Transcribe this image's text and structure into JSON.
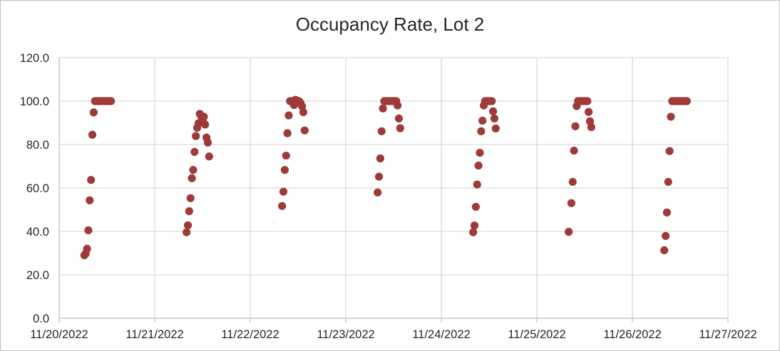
{
  "chart_data": {
    "type": "scatter",
    "title": "Occupancy Rate, Lot 2",
    "xlabel": "",
    "ylabel": "",
    "x_type": "date",
    "xlim": [
      "2022-11-20",
      "2022-11-27"
    ],
    "ylim": [
      0,
      120
    ],
    "y_ticks": [
      0,
      20,
      40,
      60,
      80,
      100,
      120
    ],
    "y_tick_labels": [
      "0.0",
      "20.0",
      "40.0",
      "60.0",
      "80.0",
      "100.0",
      "120.0"
    ],
    "x_tick_labels": [
      "11/20/2022",
      "11/21/2022",
      "11/22/2022",
      "11/23/2022",
      "11/24/2022",
      "11/25/2022",
      "11/26/2022",
      "11/27/2022"
    ],
    "grid": true,
    "marker_color": "#9E3B39",
    "series": [
      {
        "points": [
          [
            "2022-11-20 06:20",
            29.0
          ],
          [
            "2022-11-20 06:40",
            29.8
          ],
          [
            "2022-11-20 07:00",
            32.0
          ],
          [
            "2022-11-20 07:20",
            40.5
          ],
          [
            "2022-11-20 07:40",
            54.3
          ],
          [
            "2022-11-20 08:00",
            63.7
          ],
          [
            "2022-11-20 08:20",
            84.5
          ],
          [
            "2022-11-20 08:40",
            94.8
          ],
          [
            "2022-11-20 09:00",
            100.0
          ],
          [
            "2022-11-20 09:20",
            100.0
          ],
          [
            "2022-11-20 09:40",
            100.0
          ],
          [
            "2022-11-20 10:00",
            100.0
          ],
          [
            "2022-11-20 10:20",
            100.0
          ],
          [
            "2022-11-20 10:40",
            100.0
          ],
          [
            "2022-11-20 11:00",
            100.0
          ],
          [
            "2022-11-20 11:20",
            100.0
          ],
          [
            "2022-11-20 11:40",
            100.0
          ],
          [
            "2022-11-20 12:00",
            100.0
          ],
          [
            "2022-11-20 12:20",
            100.0
          ],
          [
            "2022-11-20 12:40",
            100.0
          ],
          [
            "2022-11-20 13:00",
            100.0
          ],
          [
            "2022-11-21 08:00",
            39.6
          ],
          [
            "2022-11-21 08:20",
            42.8
          ],
          [
            "2022-11-21 08:40",
            49.3
          ],
          [
            "2022-11-21 09:00",
            55.3
          ],
          [
            "2022-11-21 09:20",
            64.5
          ],
          [
            "2022-11-21 09:40",
            68.3
          ],
          [
            "2022-11-21 10:00",
            76.6
          ],
          [
            "2022-11-21 10:20",
            83.9
          ],
          [
            "2022-11-21 10:40",
            87.7
          ],
          [
            "2022-11-21 11:00",
            89.8
          ],
          [
            "2022-11-21 11:20",
            94.1
          ],
          [
            "2022-11-21 11:40",
            93.0
          ],
          [
            "2022-11-21 12:00",
            91.0
          ],
          [
            "2022-11-21 12:20",
            92.8
          ],
          [
            "2022-11-21 12:40",
            89.2
          ],
          [
            "2022-11-21 13:00",
            83.2
          ],
          [
            "2022-11-21 13:20",
            80.9
          ],
          [
            "2022-11-21 13:40",
            74.5
          ],
          [
            "2022-11-22 08:00",
            51.7
          ],
          [
            "2022-11-22 08:20",
            58.3
          ],
          [
            "2022-11-22 08:40",
            68.3
          ],
          [
            "2022-11-22 09:00",
            74.9
          ],
          [
            "2022-11-22 09:20",
            85.2
          ],
          [
            "2022-11-22 09:40",
            93.4
          ],
          [
            "2022-11-22 10:00",
            100.0
          ],
          [
            "2022-11-22 10:20",
            100.0
          ],
          [
            "2022-11-22 10:40",
            100.0
          ],
          [
            "2022-11-22 11:00",
            98.2
          ],
          [
            "2022-11-22 11:20",
            100.6
          ],
          [
            "2022-11-22 11:40",
            99.3
          ],
          [
            "2022-11-22 12:00",
            100.1
          ],
          [
            "2022-11-22 12:20",
            99.8
          ],
          [
            "2022-11-22 12:40",
            99.0
          ],
          [
            "2022-11-22 13:00",
            97.6
          ],
          [
            "2022-11-22 13:20",
            94.9
          ],
          [
            "2022-11-22 13:40",
            86.5
          ],
          [
            "2022-11-23 08:00",
            57.9
          ],
          [
            "2022-11-23 08:20",
            65.2
          ],
          [
            "2022-11-23 08:40",
            73.6
          ],
          [
            "2022-11-23 09:00",
            86.1
          ],
          [
            "2022-11-23 09:20",
            96.6
          ],
          [
            "2022-11-23 09:40",
            100.0
          ],
          [
            "2022-11-23 10:00",
            100.0
          ],
          [
            "2022-11-23 10:20",
            100.0
          ],
          [
            "2022-11-23 10:40",
            100.0
          ],
          [
            "2022-11-23 11:00",
            100.0
          ],
          [
            "2022-11-23 11:20",
            100.0
          ],
          [
            "2022-11-23 11:40",
            100.0
          ],
          [
            "2022-11-23 12:00",
            100.0
          ],
          [
            "2022-11-23 12:20",
            100.0
          ],
          [
            "2022-11-23 12:40",
            100.0
          ],
          [
            "2022-11-23 13:00",
            98.0
          ],
          [
            "2022-11-23 13:20",
            92.0
          ],
          [
            "2022-11-23 13:40",
            87.5
          ],
          [
            "2022-11-24 08:00",
            39.6
          ],
          [
            "2022-11-24 08:20",
            42.7
          ],
          [
            "2022-11-24 08:40",
            51.3
          ],
          [
            "2022-11-24 09:00",
            61.6
          ],
          [
            "2022-11-24 09:20",
            70.3
          ],
          [
            "2022-11-24 09:40",
            76.2
          ],
          [
            "2022-11-24 10:00",
            86.1
          ],
          [
            "2022-11-24 10:20",
            91.0
          ],
          [
            "2022-11-24 10:40",
            98.0
          ],
          [
            "2022-11-24 11:00",
            100.0
          ],
          [
            "2022-11-24 11:20",
            100.0
          ],
          [
            "2022-11-24 11:40",
            100.0
          ],
          [
            "2022-11-24 12:00",
            100.0
          ],
          [
            "2022-11-24 12:20",
            100.0
          ],
          [
            "2022-11-24 12:40",
            100.0
          ],
          [
            "2022-11-24 13:00",
            95.3
          ],
          [
            "2022-11-24 13:20",
            92.0
          ],
          [
            "2022-11-24 13:40",
            87.4
          ],
          [
            "2022-11-25 08:00",
            39.8
          ],
          [
            "2022-11-25 08:40",
            53.0
          ],
          [
            "2022-11-25 09:00",
            62.8
          ],
          [
            "2022-11-25 09:20",
            77.2
          ],
          [
            "2022-11-25 09:40",
            88.4
          ],
          [
            "2022-11-25 10:00",
            97.7
          ],
          [
            "2022-11-25 10:20",
            100.0
          ],
          [
            "2022-11-25 10:40",
            100.0
          ],
          [
            "2022-11-25 11:00",
            100.0
          ],
          [
            "2022-11-25 11:20",
            100.0
          ],
          [
            "2022-11-25 11:40",
            100.0
          ],
          [
            "2022-11-25 12:00",
            100.0
          ],
          [
            "2022-11-25 12:20",
            100.0
          ],
          [
            "2022-11-25 12:40",
            100.0
          ],
          [
            "2022-11-25 13:00",
            95.0
          ],
          [
            "2022-11-25 13:20",
            90.7
          ],
          [
            "2022-11-25 13:40",
            88.0
          ],
          [
            "2022-11-26 08:00",
            31.3
          ],
          [
            "2022-11-26 08:20",
            37.9
          ],
          [
            "2022-11-26 08:40",
            48.7
          ],
          [
            "2022-11-26 09:00",
            62.8
          ],
          [
            "2022-11-26 09:20",
            77.0
          ],
          [
            "2022-11-26 09:40",
            92.8
          ],
          [
            "2022-11-26 10:00",
            100.0
          ],
          [
            "2022-11-26 10:20",
            100.0
          ],
          [
            "2022-11-26 10:40",
            100.0
          ],
          [
            "2022-11-26 11:00",
            100.0
          ],
          [
            "2022-11-26 11:20",
            100.0
          ],
          [
            "2022-11-26 11:40",
            100.0
          ],
          [
            "2022-11-26 12:00",
            100.0
          ],
          [
            "2022-11-26 12:20",
            100.0
          ],
          [
            "2022-11-26 12:40",
            100.0
          ],
          [
            "2022-11-26 13:00",
            100.0
          ],
          [
            "2022-11-26 13:20",
            100.0
          ],
          [
            "2022-11-26 13:40",
            100.0
          ]
        ]
      }
    ]
  }
}
